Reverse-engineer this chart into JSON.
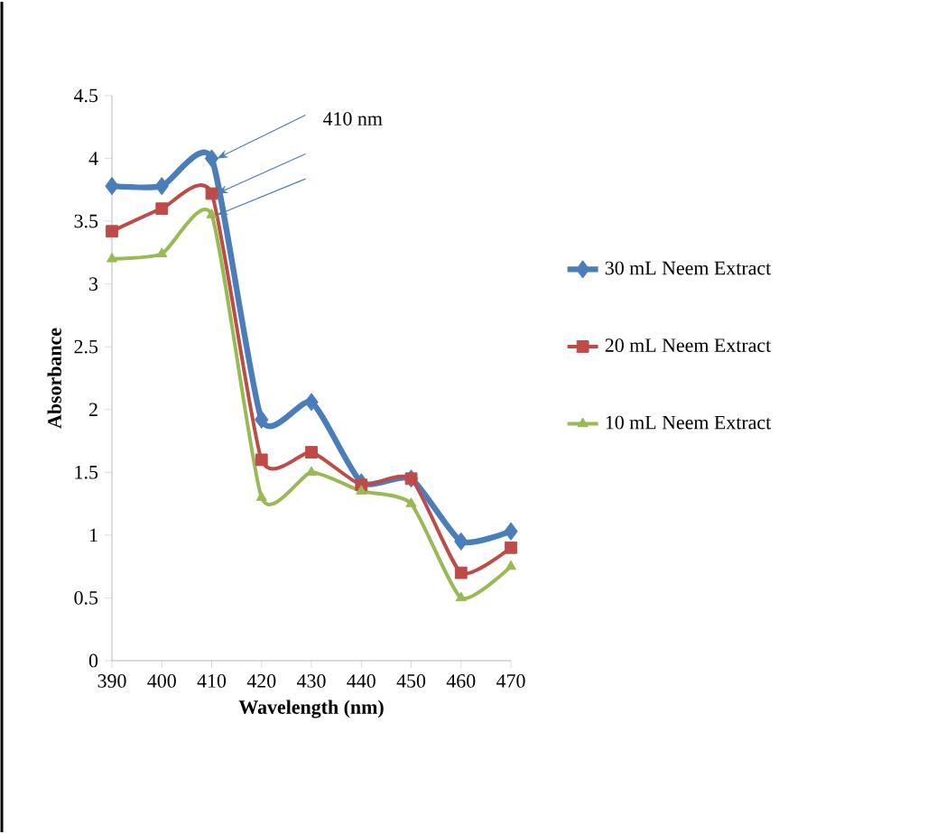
{
  "chart_data": {
    "type": "line",
    "xlabel": "Wavelength (nm)",
    "ylabel": "Absorbance",
    "categories": [
      "390",
      "400",
      "410",
      "420",
      "430",
      "440",
      "450",
      "460",
      "470"
    ],
    "series": [
      {
        "name": "30 mL Neem Extract",
        "color": "#4a7ebb",
        "marker": "diamond",
        "values": [
          3.78,
          3.78,
          4.0,
          1.92,
          2.06,
          1.42,
          1.45,
          0.95,
          1.03
        ]
      },
      {
        "name": "20 mL Neem Extract",
        "color": "#be4b48",
        "marker": "square",
        "values": [
          3.42,
          3.6,
          3.72,
          1.6,
          1.66,
          1.4,
          1.45,
          0.7,
          0.9
        ]
      },
      {
        "name": "10 mL Neem Extract",
        "color": "#98b954",
        "marker": "triangle",
        "values": [
          3.2,
          3.24,
          3.55,
          1.3,
          1.5,
          1.35,
          1.25,
          0.5,
          0.75
        ]
      }
    ],
    "ylim": [
      0,
      4.5
    ],
    "yticks": [
      0,
      0.5,
      1,
      1.5,
      2,
      2.5,
      3,
      3.5,
      4,
      4.5
    ],
    "grid": false,
    "legend": "right",
    "annotations": [
      {
        "text": "410 nm",
        "x": "410",
        "y": 4.0
      }
    ]
  }
}
